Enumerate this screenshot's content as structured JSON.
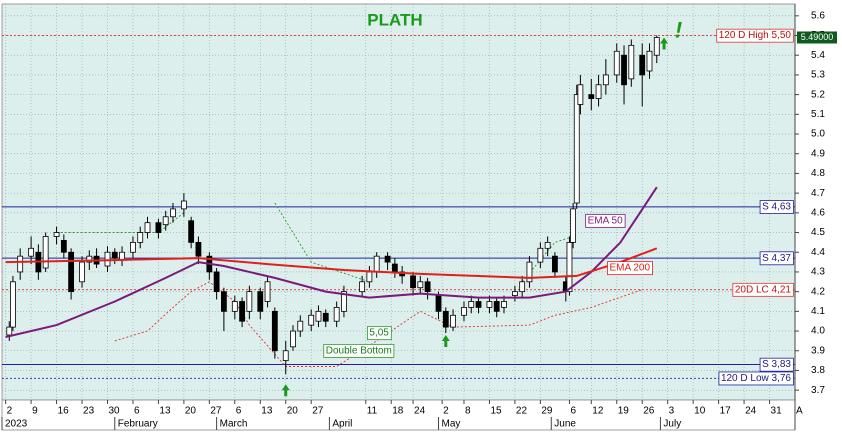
{
  "chart_data": {
    "type": "candlestick",
    "title": "PLATH",
    "dates": [
      "2023-01-03",
      "2023-01-04",
      "2023-01-06",
      "2023-01-09",
      "2023-01-11",
      "2023-01-13",
      "2023-01-16",
      "2023-01-18",
      "2023-01-20",
      "2023-01-23",
      "2023-01-25",
      "2023-01-27",
      "2023-01-30",
      "2023-02-01",
      "2023-02-03",
      "2023-02-06",
      "2023-02-08",
      "2023-02-10",
      "2023-02-13",
      "2023-02-15",
      "2023-02-17",
      "2023-02-20",
      "2023-02-22",
      "2023-02-24",
      "2023-02-27",
      "2023-03-01",
      "2023-03-03",
      "2023-03-06",
      "2023-03-08",
      "2023-03-10",
      "2023-03-13",
      "2023-03-15",
      "2023-03-17",
      "2023-03-20",
      "2023-03-22",
      "2023-03-24",
      "2023-03-27",
      "2023-03-29",
      "2023-03-31",
      "2023-04-03",
      "2023-04-05",
      "2023-04-10",
      "2023-04-12",
      "2023-04-14",
      "2023-04-17",
      "2023-04-19",
      "2023-04-21",
      "2023-04-24",
      "2023-04-26",
      "2023-04-28",
      "2023-05-01",
      "2023-05-03",
      "2023-05-05",
      "2023-05-08",
      "2023-05-10",
      "2023-05-12",
      "2023-05-15",
      "2023-05-17",
      "2023-05-19",
      "2023-05-22",
      "2023-05-24",
      "2023-05-26",
      "2023-05-29",
      "2023-05-31",
      "2023-06-02",
      "2023-06-05",
      "2023-06-06",
      "2023-06-07",
      "2023-06-08",
      "2023-06-09",
      "2023-06-12",
      "2023-06-14",
      "2023-06-16",
      "2023-06-19",
      "2023-06-21",
      "2023-06-23",
      "2023-06-26",
      "2023-06-28",
      "2023-06-30"
    ],
    "open": [
      3.98,
      4.02,
      4.3,
      4.38,
      4.4,
      4.32,
      4.48,
      4.46,
      4.4,
      4.25,
      4.35,
      4.38,
      4.33,
      4.4,
      4.36,
      4.4,
      4.45,
      4.5,
      4.55,
      4.54,
      4.58,
      4.62,
      4.56,
      4.45,
      4.38,
      4.3,
      4.2,
      4.1,
      4.15,
      4.1,
      4.2,
      4.15,
      4.1,
      3.85,
      3.92,
      4.0,
      4.03,
      4.05,
      4.09,
      4.05,
      4.1,
      4.2,
      4.25,
      4.3,
      4.38,
      4.34,
      4.3,
      4.28,
      4.22,
      4.25,
      4.18,
      4.1,
      4.02,
      4.08,
      4.12,
      4.15,
      4.12,
      4.15,
      4.12,
      4.18,
      4.2,
      4.25,
      4.35,
      4.42,
      4.38,
      4.25,
      4.2,
      4.45,
      4.65,
      5.15,
      5.2,
      5.18,
      5.25,
      5.3,
      5.4,
      5.28,
      5.4,
      5.32,
      5.4
    ],
    "high": [
      4.05,
      4.28,
      4.42,
      4.48,
      4.44,
      4.5,
      4.53,
      4.49,
      4.42,
      4.38,
      4.41,
      4.42,
      4.43,
      4.42,
      4.43,
      4.48,
      4.53,
      4.58,
      4.57,
      4.61,
      4.65,
      4.7,
      4.58,
      4.48,
      4.4,
      4.32,
      4.22,
      4.18,
      4.17,
      4.23,
      4.22,
      4.28,
      4.12,
      3.95,
      4.03,
      4.08,
      4.11,
      4.13,
      4.11,
      4.15,
      4.23,
      4.28,
      4.33,
      4.4,
      4.4,
      4.37,
      4.33,
      4.3,
      4.28,
      4.27,
      4.2,
      4.12,
      4.11,
      4.15,
      4.18,
      4.17,
      4.18,
      4.17,
      4.18,
      4.23,
      4.28,
      4.38,
      4.45,
      4.48,
      4.4,
      4.28,
      4.48,
      4.65,
      5.25,
      5.3,
      5.28,
      5.3,
      5.38,
      5.46,
      5.45,
      5.48,
      5.46,
      5.46,
      5.5
    ],
    "low": [
      3.95,
      4.0,
      4.26,
      4.34,
      4.26,
      4.3,
      4.44,
      4.37,
      4.16,
      4.22,
      4.31,
      4.32,
      4.3,
      4.34,
      4.33,
      4.37,
      4.42,
      4.47,
      4.47,
      4.51,
      4.55,
      4.58,
      4.42,
      4.34,
      4.26,
      4.16,
      4.0,
      4.06,
      4.02,
      4.06,
      4.06,
      4.12,
      3.86,
      3.78,
      3.9,
      3.97,
      4.0,
      4.02,
      4.02,
      4.02,
      4.07,
      4.17,
      4.22,
      4.27,
      4.31,
      4.27,
      4.24,
      4.18,
      4.19,
      4.16,
      4.06,
      3.99,
      4.0,
      4.05,
      4.09,
      4.09,
      4.09,
      4.07,
      4.09,
      4.15,
      4.17,
      4.22,
      4.32,
      4.38,
      4.27,
      4.15,
      4.18,
      4.42,
      4.62,
      5.1,
      5.12,
      5.14,
      5.2,
      5.26,
      5.15,
      5.24,
      5.14,
      5.28,
      5.36
    ],
    "close": [
      4.02,
      4.25,
      4.38,
      4.42,
      4.3,
      4.48,
      4.5,
      4.4,
      4.2,
      4.35,
      4.38,
      4.34,
      4.4,
      4.37,
      4.4,
      4.45,
      4.5,
      4.55,
      4.5,
      4.58,
      4.62,
      4.66,
      4.45,
      4.38,
      4.3,
      4.2,
      4.1,
      4.15,
      4.05,
      4.2,
      4.1,
      4.25,
      3.9,
      3.9,
      4.0,
      4.05,
      4.08,
      4.1,
      4.05,
      4.12,
      4.2,
      4.25,
      4.3,
      4.38,
      4.35,
      4.3,
      4.28,
      4.22,
      4.25,
      4.2,
      4.1,
      4.02,
      4.08,
      4.12,
      4.15,
      4.12,
      4.15,
      4.1,
      4.15,
      4.2,
      4.25,
      4.35,
      4.42,
      4.45,
      4.3,
      4.2,
      4.45,
      4.62,
      5.2,
      5.25,
      5.18,
      5.25,
      5.3,
      5.42,
      5.25,
      5.45,
      5.3,
      5.42,
      5.49
    ],
    "up_color": "#ffffff",
    "down_color": "#000000",
    "series": [
      {
        "name": "EMA 50",
        "color": "#7b1a7b",
        "x": [
          "2023-01-02",
          "2023-01-16",
          "2023-02-01",
          "2023-02-15",
          "2023-02-24",
          "2023-03-03",
          "2023-03-17",
          "2023-03-31",
          "2023-04-12",
          "2023-04-26",
          "2023-05-12",
          "2023-05-26",
          "2023-06-05",
          "2023-06-12",
          "2023-06-20",
          "2023-06-30"
        ],
        "values": [
          3.97,
          4.03,
          4.15,
          4.27,
          4.35,
          4.33,
          4.27,
          4.2,
          4.17,
          4.19,
          4.17,
          4.17,
          4.2,
          4.3,
          4.45,
          4.73
        ]
      },
      {
        "name": "EMA 200",
        "color": "#e0201a",
        "x": [
          "2023-01-02",
          "2023-02-01",
          "2023-02-24",
          "2023-03-15",
          "2023-04-05",
          "2023-04-26",
          "2023-05-26",
          "2023-06-08",
          "2023-06-20",
          "2023-06-30"
        ],
        "values": [
          4.35,
          4.36,
          4.37,
          4.34,
          4.31,
          4.29,
          4.27,
          4.28,
          4.35,
          4.42
        ]
      }
    ],
    "dotted_lines": [
      {
        "color": "#e03030",
        "x": [
          "2023-02-01",
          "2023-02-10",
          "2023-02-17",
          "2023-02-22",
          "2023-02-27",
          "2023-03-06",
          "2023-03-10",
          "2023-03-20",
          "2023-04-03",
          "2023-04-14",
          "2023-04-26",
          "2023-05-05",
          "2023-05-26",
          "2023-06-02",
          "2023-06-12",
          "2023-06-26"
        ],
        "values": [
          3.95,
          4.0,
          4.12,
          4.2,
          4.25,
          4.15,
          4.03,
          3.82,
          3.82,
          3.95,
          4.1,
          4.02,
          4.03,
          4.08,
          4.12,
          4.21
        ]
      },
      {
        "color": "#2a9a2a",
        "x": [
          "2023-01-16",
          "2023-02-13",
          "2023-02-20",
          null,
          "2023-03-17",
          "2023-03-27",
          "2023-04-12",
          null,
          "2023-05-24",
          "2023-06-02",
          "2023-06-07"
        ],
        "values": [
          4.5,
          4.5,
          4.6,
          null,
          4.65,
          4.35,
          4.25,
          null,
          4.25,
          4.45,
          4.48
        ]
      }
    ],
    "levels": [
      {
        "value": 5.5,
        "label": "120 D High 5,50",
        "color": "#e03030",
        "dashed": true
      },
      {
        "value": 4.63,
        "label": "S 4,63",
        "color": "#2020a0",
        "dashed": false
      },
      {
        "value": 4.37,
        "label": "S 4,37",
        "color": "#2020a0",
        "dashed": false
      },
      {
        "value": 4.21,
        "label": "20D LC 4,21",
        "color": "#e03030",
        "dashed": true
      },
      {
        "value": 3.83,
        "label": "S 3,83",
        "color": "#2020a0",
        "dashed": false
      },
      {
        "value": 3.76,
        "label": "120 D Low 3,76",
        "color": "#2020a0",
        "dashed": true
      }
    ],
    "last_price": {
      "value": 5.49,
      "label": "5.49000"
    },
    "annotations": [
      "5,05",
      "Double Bottom",
      "!"
    ],
    "ylim": [
      3.65,
      5.66
    ],
    "yticks": [
      3.7,
      3.8,
      3.9,
      {
        "value": 4,
        "label": "4.0"
      },
      4.1,
      4.2,
      4.3,
      4.4,
      4.5,
      4.6,
      4.7,
      4.8,
      4.9,
      {
        "value": 5,
        "label": "5.0"
      },
      5.1,
      5.2,
      5.3,
      5.4,
      5.5,
      5.6
    ],
    "xlim": [
      "2023-01-01",
      "2023-08-07"
    ],
    "xticks": [
      {
        "value": "2023-01-02",
        "label": "2"
      },
      {
        "value": "2023-01-09",
        "label": "9"
      },
      {
        "value": "2023-01-16",
        "label": "16"
      },
      {
        "value": "2023-01-23",
        "label": "23"
      },
      {
        "value": "2023-01-30",
        "label": "30"
      },
      {
        "value": "2023-02-06",
        "label": "6"
      },
      {
        "value": "2023-02-13",
        "label": "13"
      },
      {
        "value": "2023-02-20",
        "label": "20"
      },
      {
        "value": "2023-02-27",
        "label": "27"
      },
      {
        "value": "2023-03-06",
        "label": "6"
      },
      {
        "value": "2023-03-13",
        "label": "13"
      },
      {
        "value": "2023-03-20",
        "label": "20"
      },
      {
        "value": "2023-03-27",
        "label": "27"
      },
      {
        "value": "2023-04-11",
        "label": "11"
      },
      {
        "value": "2023-04-18",
        "label": "18"
      },
      {
        "value": "2023-04-24",
        "label": "24"
      },
      {
        "value": "2023-05-02",
        "label": "2"
      },
      {
        "value": "2023-05-08",
        "label": "8"
      },
      {
        "value": "2023-05-15",
        "label": "15"
      },
      {
        "value": "2023-05-22",
        "label": "22"
      },
      {
        "value": "2023-05-29",
        "label": "29"
      },
      {
        "value": "2023-06-06",
        "label": "6"
      },
      {
        "value": "2023-06-12",
        "label": "12"
      },
      {
        "value": "2023-06-19",
        "label": "19"
      },
      {
        "value": "2023-06-26",
        "label": "26"
      },
      {
        "value": "2023-07-03",
        "label": "3"
      },
      {
        "value": "2023-07-10",
        "label": "10"
      },
      {
        "value": "2023-07-17",
        "label": "17"
      },
      {
        "value": "2023-07-24",
        "label": "24"
      },
      {
        "value": "2023-07-31",
        "label": "31"
      },
      {
        "value": "2023-08-07",
        "label": "A"
      }
    ],
    "months": [
      {
        "value": "2023-01-01",
        "label": "2023"
      },
      {
        "value": "2023-02-01",
        "label": "February"
      },
      {
        "value": "2023-03-01",
        "label": "March"
      },
      {
        "value": "2023-04-01",
        "label": "April"
      },
      {
        "value": "2023-05-01",
        "label": "May"
      },
      {
        "value": "2023-06-01",
        "label": "June"
      },
      {
        "value": "2023-07-01",
        "label": "July"
      }
    ],
    "grid": true
  }
}
